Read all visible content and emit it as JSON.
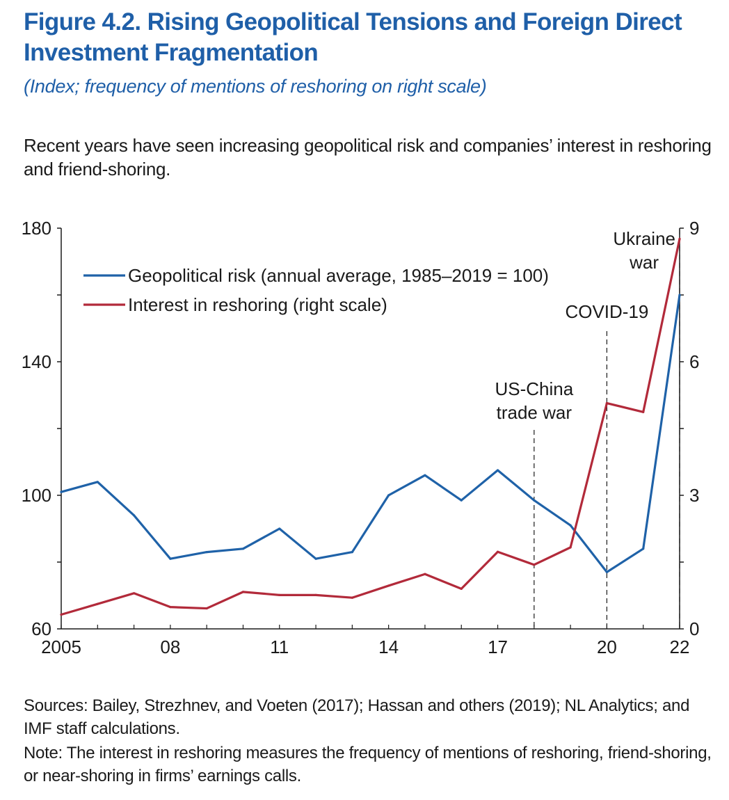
{
  "figure": {
    "title": "Figure 4.2.  Rising Geopolitical Tensions and Foreign Direct Investment Fragmentation",
    "subtitle": "(Index; frequency of mentions of reshoring on right scale)",
    "lead": "Recent years have seen increasing geopolitical risk and companies’ interest in reshoring and friend-shoring.",
    "sources": "Sources: Bailey, Strezhnev, and Voeten (2017); Hassan and others (2019); NL Analytics; and IMF staff calculations.",
    "note": "Note: The interest in reshoring measures the frequency of mentions of reshoring, friend-shoring, or near-shoring in firms’ earnings calls."
  },
  "chart_data": {
    "type": "line",
    "x": [
      2005,
      2006,
      2007,
      2008,
      2009,
      2010,
      2011,
      2012,
      2013,
      2014,
      2015,
      2016,
      2017,
      2018,
      2019,
      2020,
      2021,
      2022
    ],
    "x_tick_values": [
      2005,
      2008,
      2011,
      2014,
      2017,
      2020,
      2022
    ],
    "x_tick_labels": [
      "2005",
      "08",
      "11",
      "14",
      "17",
      "20",
      "22"
    ],
    "xlim": [
      2005,
      2022
    ],
    "ylim_left": [
      60,
      180
    ],
    "y_left_ticks": [
      60,
      80,
      100,
      120,
      140,
      160,
      180
    ],
    "y_left_tick_labels": [
      "60",
      "",
      "100",
      "",
      "140",
      "",
      "180"
    ],
    "ylim_right": [
      0,
      9
    ],
    "y_right_ticks": [
      0,
      1.5,
      3,
      4.5,
      6,
      7.5,
      9
    ],
    "y_right_tick_labels": [
      "0",
      "",
      "3",
      "",
      "6",
      "",
      "9"
    ],
    "series": [
      {
        "name": "Geopolitical risk (annual average, 1985–2019 = 100)",
        "axis": "left",
        "color": "#1f62a8",
        "values": [
          101,
          104,
          94,
          81,
          83,
          84,
          90,
          81,
          83,
          100,
          106,
          98.5,
          107.5,
          98.5,
          91,
          77,
          84,
          160
        ]
      },
      {
        "name": "Interest in reshoring (right scale)",
        "axis": "right",
        "color": "#b22a3a",
        "values": [
          0.32,
          0.56,
          0.8,
          0.49,
          0.46,
          0.83,
          0.76,
          0.76,
          0.7,
          0.97,
          1.23,
          0.9,
          1.73,
          1.44,
          1.83,
          5.07,
          4.87,
          8.76
        ]
      }
    ],
    "annotations": [
      {
        "x": 2018,
        "lines": [
          "US-China",
          "trade war"
        ]
      },
      {
        "x": 2020,
        "lines": [
          "COVID-19"
        ]
      },
      {
        "x": 2022,
        "lines": [
          "Ukraine",
          "war"
        ]
      }
    ],
    "legend_position": "top-left",
    "grid": false
  }
}
